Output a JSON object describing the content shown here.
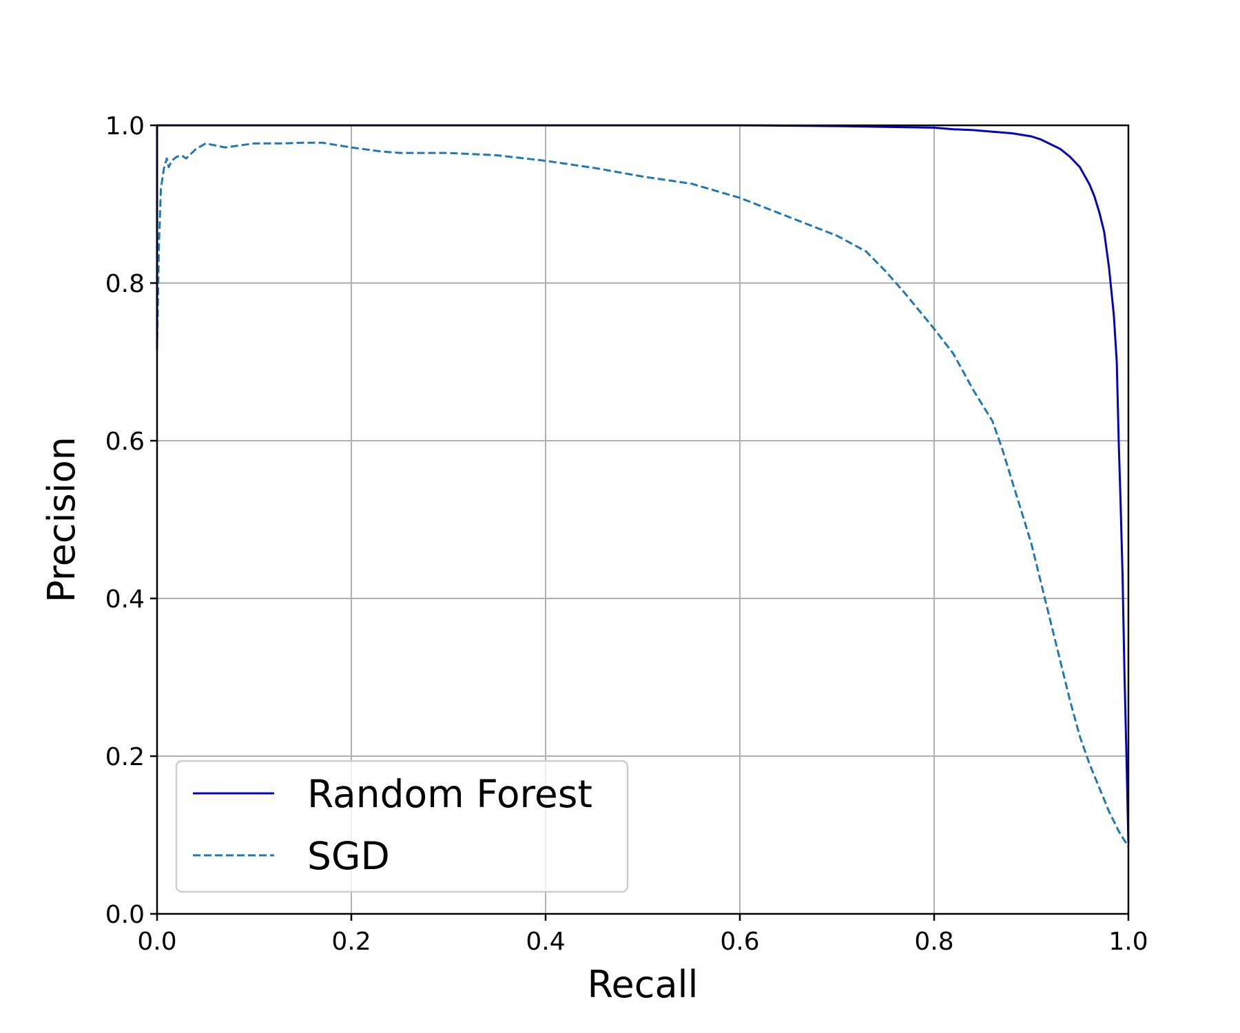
{
  "chart_data": {
    "type": "line",
    "title": "",
    "xlabel": "Recall",
    "ylabel": "Precision",
    "xlim": [
      0.0,
      1.0
    ],
    "ylim": [
      0.0,
      1.0
    ],
    "grid": true,
    "legend_position": "lower-left",
    "x_ticks": [
      "0.0",
      "0.2",
      "0.4",
      "0.6",
      "0.8",
      "1.0"
    ],
    "y_ticks": [
      "0.0",
      "0.2",
      "0.4",
      "0.6",
      "0.8",
      "1.0"
    ],
    "series": [
      {
        "name": "Random Forest",
        "color": "#0000cc",
        "style": "solid",
        "points": [
          [
            0.0,
            0.715
          ],
          [
            0.0,
            0.8
          ],
          [
            0.0,
            0.9
          ],
          [
            0.0,
            0.95
          ],
          [
            0.0,
            1.0
          ],
          [
            0.1,
            1.0
          ],
          [
            0.2,
            1.0
          ],
          [
            0.3,
            1.0
          ],
          [
            0.4,
            1.0
          ],
          [
            0.5,
            1.0
          ],
          [
            0.6,
            1.0
          ],
          [
            0.7,
            0.999
          ],
          [
            0.75,
            0.998
          ],
          [
            0.8,
            0.997
          ],
          [
            0.82,
            0.995
          ],
          [
            0.84,
            0.994
          ],
          [
            0.86,
            0.992
          ],
          [
            0.88,
            0.99
          ],
          [
            0.9,
            0.986
          ],
          [
            0.91,
            0.982
          ],
          [
            0.92,
            0.976
          ],
          [
            0.93,
            0.97
          ],
          [
            0.94,
            0.96
          ],
          [
            0.95,
            0.947
          ],
          [
            0.96,
            0.925
          ],
          [
            0.965,
            0.91
          ],
          [
            0.97,
            0.89
          ],
          [
            0.975,
            0.865
          ],
          [
            0.98,
            0.82
          ],
          [
            0.985,
            0.76
          ],
          [
            0.988,
            0.7
          ],
          [
            0.99,
            0.6
          ],
          [
            0.992,
            0.52
          ],
          [
            0.994,
            0.43
          ],
          [
            0.996,
            0.3
          ],
          [
            0.998,
            0.2
          ],
          [
            1.0,
            0.09
          ]
        ]
      },
      {
        "name": "SGD",
        "color": "#1f77b4",
        "style": "dashed",
        "points": [
          [
            0.0,
            0.715
          ],
          [
            0.002,
            0.85
          ],
          [
            0.004,
            0.92
          ],
          [
            0.007,
            0.945
          ],
          [
            0.01,
            0.958
          ],
          [
            0.012,
            0.947
          ],
          [
            0.015,
            0.955
          ],
          [
            0.02,
            0.96
          ],
          [
            0.025,
            0.962
          ],
          [
            0.03,
            0.958
          ],
          [
            0.04,
            0.97
          ],
          [
            0.05,
            0.977
          ],
          [
            0.07,
            0.972
          ],
          [
            0.1,
            0.977
          ],
          [
            0.13,
            0.977
          ],
          [
            0.15,
            0.978
          ],
          [
            0.17,
            0.978
          ],
          [
            0.2,
            0.972
          ],
          [
            0.23,
            0.967
          ],
          [
            0.25,
            0.965
          ],
          [
            0.3,
            0.965
          ],
          [
            0.35,
            0.962
          ],
          [
            0.4,
            0.955
          ],
          [
            0.45,
            0.946
          ],
          [
            0.5,
            0.935
          ],
          [
            0.55,
            0.926
          ],
          [
            0.6,
            0.908
          ],
          [
            0.65,
            0.884
          ],
          [
            0.7,
            0.86
          ],
          [
            0.73,
            0.84
          ],
          [
            0.75,
            0.815
          ],
          [
            0.77,
            0.787
          ],
          [
            0.8,
            0.742
          ],
          [
            0.82,
            0.71
          ],
          [
            0.84,
            0.665
          ],
          [
            0.86,
            0.625
          ],
          [
            0.87,
            0.59
          ],
          [
            0.88,
            0.55
          ],
          [
            0.89,
            0.51
          ],
          [
            0.9,
            0.47
          ],
          [
            0.91,
            0.42
          ],
          [
            0.92,
            0.37
          ],
          [
            0.93,
            0.32
          ],
          [
            0.94,
            0.27
          ],
          [
            0.95,
            0.225
          ],
          [
            0.96,
            0.19
          ],
          [
            0.97,
            0.16
          ],
          [
            0.98,
            0.13
          ],
          [
            0.99,
            0.105
          ],
          [
            1.0,
            0.085
          ]
        ]
      }
    ]
  }
}
